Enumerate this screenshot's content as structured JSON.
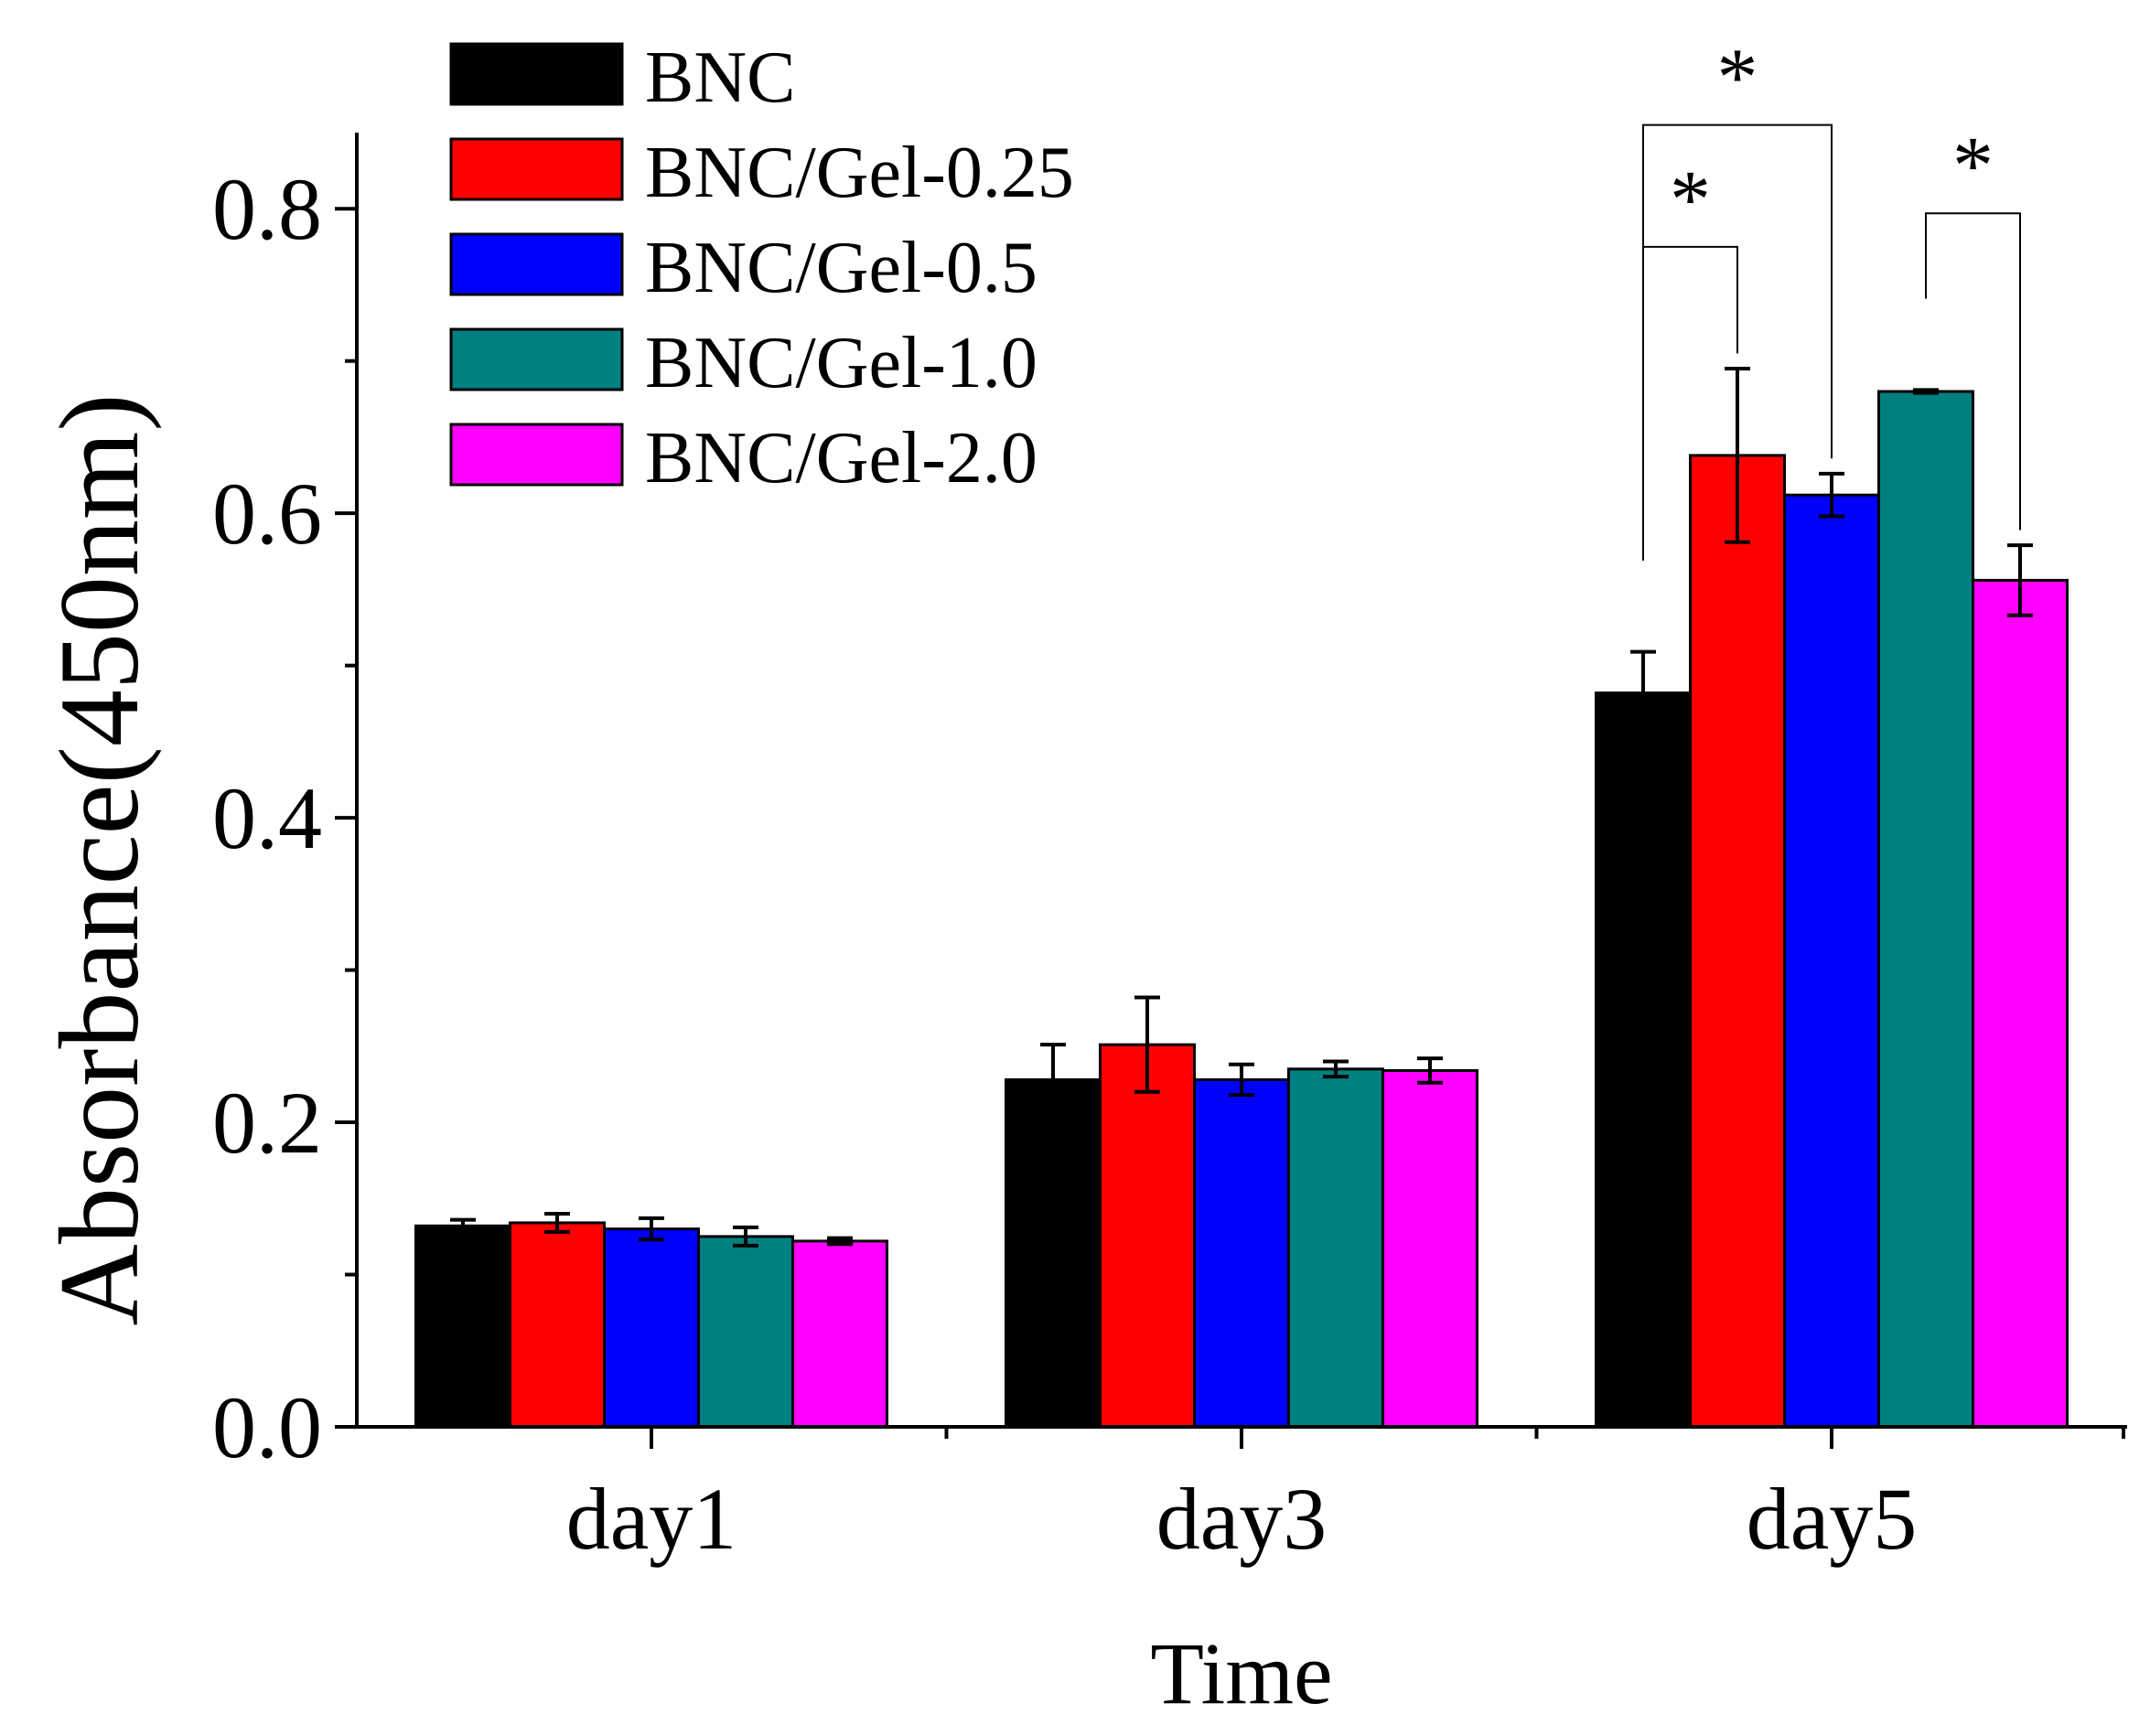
{
  "chart_data": {
    "type": "bar",
    "title": "",
    "xlabel": "Time",
    "ylabel": "Absorbance(450nm)",
    "ylim": [
      0.0,
      0.85
    ],
    "yticks": [
      0.0,
      0.2,
      0.4,
      0.6,
      0.8
    ],
    "ytick_labels": [
      "0.0",
      "0.2",
      "0.4",
      "0.6",
      "0.8"
    ],
    "categories": [
      "day1",
      "day3",
      "day5"
    ],
    "grid": false,
    "legend_position": "top-left",
    "series": [
      {
        "name": "BNC",
        "color": "#000000",
        "values": [
          0.132,
          0.228,
          0.482
        ],
        "errors": [
          0.004,
          0.023,
          0.027
        ]
      },
      {
        "name": "BNC/Gel-0.25",
        "color": "#ff0000",
        "values": [
          0.134,
          0.251,
          0.638
        ],
        "errors": [
          0.006,
          0.031,
          0.057
        ]
      },
      {
        "name": "BNC/Gel-0.5",
        "color": "#0000ff",
        "values": [
          0.13,
          0.228,
          0.612
        ],
        "errors": [
          0.007,
          0.01,
          0.014
        ]
      },
      {
        "name": "BNC/Gel-1.0",
        "color": "#008080",
        "values": [
          0.125,
          0.235,
          0.68
        ],
        "errors": [
          0.006,
          0.005,
          0.001
        ]
      },
      {
        "name": "BNC/Gel-2.0",
        "color": "#ff00ff",
        "values": [
          0.122,
          0.234,
          0.556
        ],
        "errors": [
          0.002,
          0.008,
          0.023
        ]
      }
    ],
    "significance": [
      {
        "category": "day5",
        "from_series": 0,
        "to_series": 1,
        "label": "*"
      },
      {
        "category": "day5",
        "from_series": 0,
        "to_series": 2,
        "label": "*"
      },
      {
        "category": "day5",
        "from_series": 3,
        "to_series": 4,
        "label": "*"
      }
    ]
  }
}
